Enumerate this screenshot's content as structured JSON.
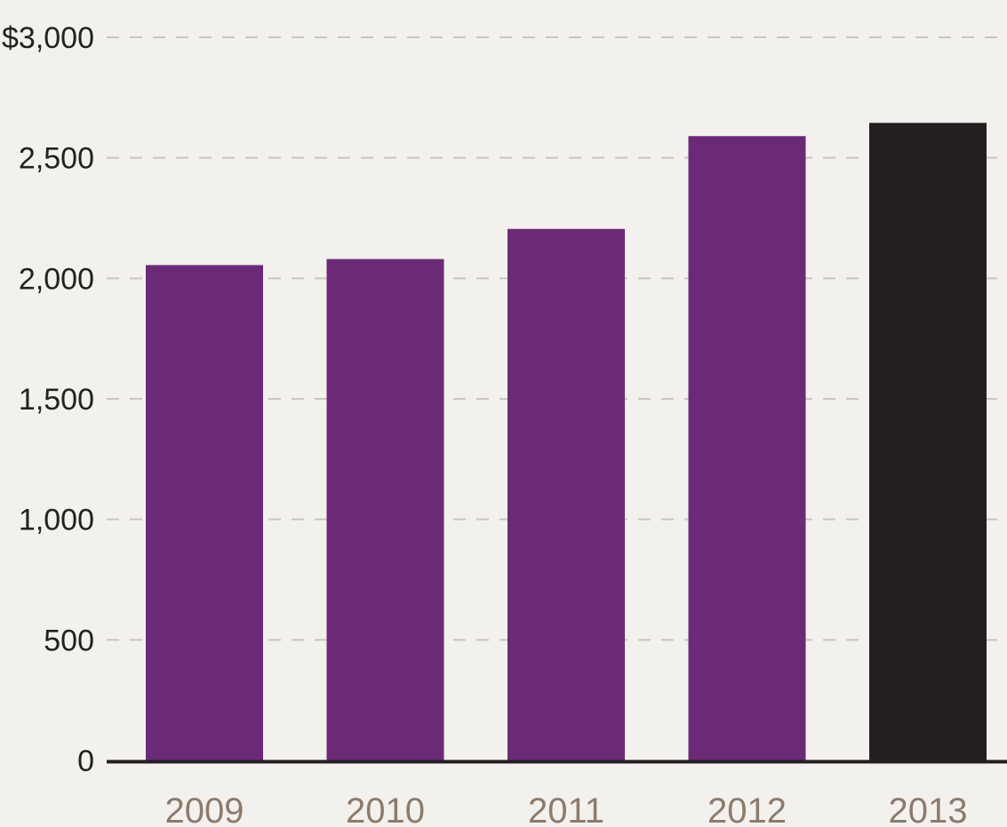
{
  "chart_data": {
    "type": "bar",
    "categories": [
      "2009",
      "2010",
      "2011",
      "2012",
      "2013"
    ],
    "values": [
      2055,
      2080,
      2205,
      2590,
      2645
    ],
    "ylim": [
      0,
      3000
    ],
    "yticks": [
      0,
      500,
      1000,
      1500,
      2000,
      2500,
      3000
    ],
    "ytick_labels": [
      "0",
      "500",
      "1,000",
      "1,500",
      "2,000",
      "2,500",
      "$3,000"
    ],
    "grid": true,
    "bar_colors": [
      "#6b2a77",
      "#6b2a77",
      "#6b2a77",
      "#6b2a77",
      "#231f20"
    ],
    "label_color": "#8c7b6b",
    "grid_color": "#c9c4bf",
    "axis_color": "#231f20"
  }
}
